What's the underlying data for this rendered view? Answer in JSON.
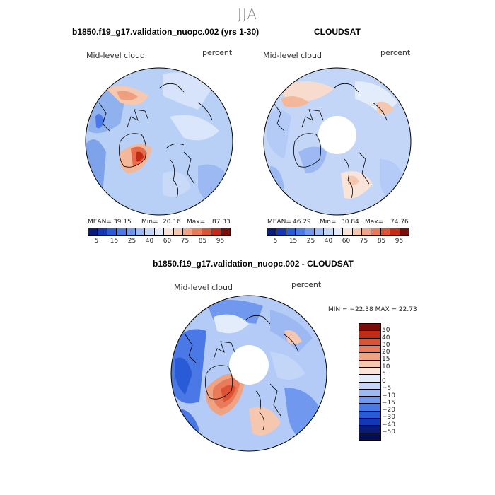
{
  "season": "JJA",
  "panel1": {
    "title": "b1850.f19_g17.validation_nuopc.002 (yrs 1-30)",
    "left_label": "Mid-level cloud",
    "right_label": "percent",
    "mean_label": "MEAN=",
    "mean": "39.15",
    "min_label": "Min=",
    "min": "20.16",
    "max_label": "Max=",
    "max": "87.33"
  },
  "panel2": {
    "title": "CLOUDSAT",
    "left_label": "Mid-level cloud",
    "right_label": "percent",
    "mean_label": "MEAN=",
    "mean": "46.29",
    "min_label": "Min=",
    "min": "30.84",
    "max_label": "Max=",
    "max": "74.76"
  },
  "panel3": {
    "title": "b1850.f19_g17.validation_nuopc.002 - CLOUDSAT",
    "left_label": "Mid-level cloud",
    "right_label": "percent",
    "minmax_text": "MIN = −22.38  MAX =  22.73"
  },
  "colorbar_abs": {
    "colors": [
      "#0a1c7a",
      "#1437b8",
      "#2a5bd6",
      "#4a78e6",
      "#7098ef",
      "#9cb9f4",
      "#c3d6f8",
      "#e3ecfb",
      "#f8e4d8",
      "#f5c7ae",
      "#f0a383",
      "#e97b5a",
      "#dc5233",
      "#c42b17",
      "#7a0d07"
    ],
    "tick_labels": [
      "5",
      "15",
      "25",
      "40",
      "60",
      "75",
      "85",
      "95"
    ]
  },
  "colorbar_diff": {
    "colors": [
      "#7a0d07",
      "#c42b17",
      "#dc5233",
      "#e97b5a",
      "#f0a383",
      "#f5c7ae",
      "#f8e4d8",
      "#e3ecfb",
      "#c3d6f8",
      "#9cb9f4",
      "#7098ef",
      "#4a78e6",
      "#2a5bd6",
      "#1437b8",
      "#0a1c7a",
      "#060e55"
    ],
    "tick_labels": [
      "50",
      "40",
      "30",
      "20",
      "15",
      "10",
      "5",
      "0",
      "−5",
      "−10",
      "−15",
      "−20",
      "−30",
      "−40",
      "−50"
    ]
  }
}
